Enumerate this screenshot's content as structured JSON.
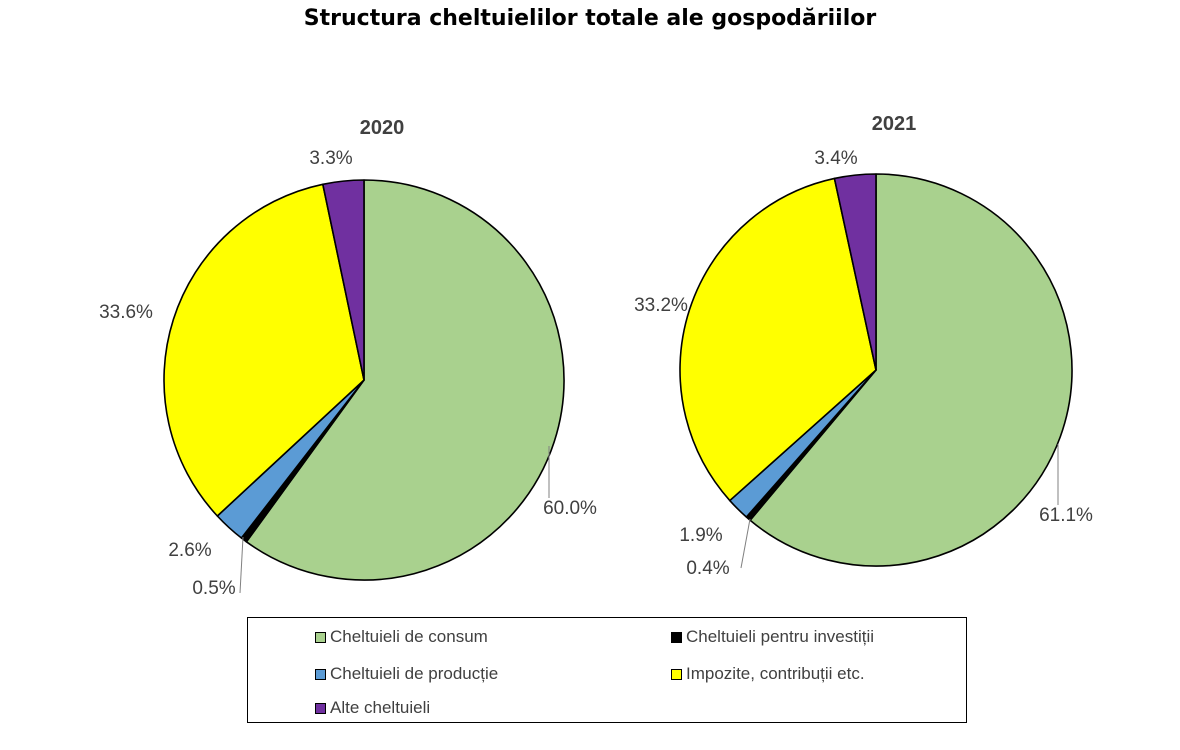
{
  "title": "Structura cheltuielilor totale ale gospodăriilor",
  "colors": {
    "consum": "#a9d18e",
    "investitii": "#000000",
    "productie": "#5b9bd5",
    "impozite": "#ffff00",
    "alte": "#7030a0"
  },
  "legend": [
    {
      "key": "consum",
      "label": "Cheltuieli de consum"
    },
    {
      "key": "investitii",
      "label": "Cheltuieli pentru investiții"
    },
    {
      "key": "productie",
      "label": "Cheltuieli de producție"
    },
    {
      "key": "impozite",
      "label": "Impozite, contribuții etc."
    },
    {
      "key": "alte",
      "label": "Alte cheltuieli"
    }
  ],
  "chart_data": [
    {
      "type": "pie",
      "title": "2020",
      "categories": [
        "Cheltuieli de consum",
        "Cheltuieli pentru investiții",
        "Cheltuieli de producție",
        "Impozite, contribuții etc.",
        "Alte cheltuieli"
      ],
      "values": [
        60.0,
        0.5,
        2.6,
        33.6,
        3.3
      ],
      "labels": [
        "60.0%",
        "0.5%",
        "2.6%",
        "33.6%",
        "3.3%"
      ]
    },
    {
      "type": "pie",
      "title": "2021",
      "categories": [
        "Cheltuieli de consum",
        "Cheltuieli pentru investiții",
        "Cheltuieli de producție",
        "Impozite, contribuții etc.",
        "Alte cheltuieli"
      ],
      "values": [
        61.1,
        0.4,
        1.9,
        33.2,
        3.4
      ],
      "labels": [
        "61.1%",
        "0.4%",
        "1.9%",
        "33.2%",
        "3.4%"
      ]
    }
  ]
}
